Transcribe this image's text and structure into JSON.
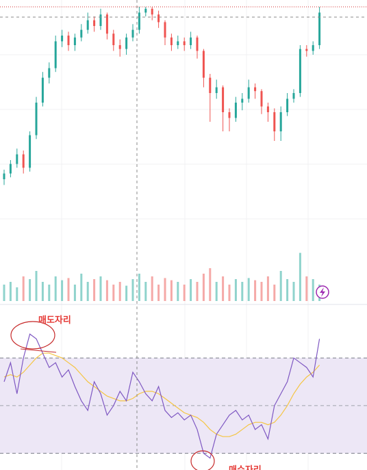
{
  "chart_data": [
    {
      "type": "candlestick",
      "up_color": "#26a69a",
      "down_color": "#ef5350",
      "ylim": [
        0,
        100
      ],
      "open": [
        10,
        13,
        18,
        23,
        16,
        33,
        50,
        63,
        68,
        82,
        85,
        80,
        84,
        88,
        93,
        90,
        96,
        86,
        80,
        78,
        84,
        88,
        97,
        99,
        96,
        92,
        84,
        80,
        82,
        80,
        84,
        77,
        63,
        55,
        58,
        45,
        42,
        50,
        52,
        58,
        56,
        48,
        45,
        35,
        45,
        52,
        55,
        78,
        77,
        80
      ],
      "high": [
        15,
        20,
        26,
        25,
        35,
        53,
        66,
        71,
        85,
        88,
        87,
        86,
        91,
        97,
        95,
        99,
        97,
        88,
        83,
        86,
        91,
        100,
        100,
        100,
        98,
        93,
        86,
        85,
        84,
        87,
        85,
        78,
        65,
        62,
        59,
        47,
        53,
        55,
        62,
        60,
        57,
        50,
        47,
        48,
        55,
        57,
        80,
        80,
        82,
        100
      ],
      "low": [
        7,
        11,
        16,
        13,
        14,
        31,
        48,
        60,
        66,
        79,
        77,
        77,
        82,
        86,
        87,
        88,
        83,
        77,
        74,
        75,
        82,
        86,
        95,
        93,
        89,
        80,
        77,
        78,
        77,
        78,
        73,
        58,
        40,
        52,
        35,
        35,
        40,
        46,
        50,
        52,
        44,
        40,
        30,
        30,
        43,
        50,
        53,
        74,
        75,
        78
      ],
      "close": [
        13,
        18,
        23,
        16,
        33,
        50,
        63,
        68,
        82,
        85,
        80,
        84,
        88,
        93,
        90,
        96,
        86,
        80,
        78,
        84,
        88,
        97,
        99,
        96,
        92,
        84,
        80,
        82,
        80,
        84,
        77,
        63,
        55,
        58,
        45,
        42,
        50,
        52,
        58,
        56,
        48,
        45,
        35,
        45,
        52,
        55,
        78,
        77,
        80,
        97
      ]
    },
    {
      "type": "bar",
      "ylim": [
        0,
        100
      ],
      "up_color": "#8fd3cc",
      "down_color": "#f5a9a7",
      "values": [
        30,
        35,
        25,
        45,
        40,
        55,
        35,
        30,
        45,
        38,
        42,
        30,
        50,
        35,
        40,
        45,
        38,
        30,
        35,
        28,
        40,
        50,
        35,
        45,
        30,
        42,
        38,
        35,
        30,
        40,
        35,
        50,
        60,
        35,
        45,
        30,
        40,
        35,
        42,
        38,
        35,
        45,
        30,
        55,
        40,
        35,
        88,
        45,
        40,
        30
      ]
    },
    {
      "type": "line",
      "ylim": [
        23,
        91
      ],
      "band": [
        30,
        70
      ],
      "midline": 50,
      "band_color": "#ede7f6",
      "series": [
        {
          "color": "#7e57c2",
          "values": [
            60,
            68,
            55,
            70,
            80,
            78,
            72,
            66,
            68,
            62,
            65,
            58,
            52,
            48,
            60,
            55,
            46,
            50,
            56,
            52,
            64,
            60,
            55,
            52,
            58,
            48,
            45,
            47,
            44,
            46,
            40,
            30,
            28,
            38,
            42,
            46,
            48,
            44,
            46,
            40,
            42,
            36,
            50,
            55,
            60,
            70,
            68,
            66,
            62,
            78
          ]
        },
        {
          "color": "#f5c542",
          "values": [
            62,
            63,
            62,
            64,
            67,
            70,
            72,
            72,
            71,
            70,
            68,
            66,
            63,
            60,
            58,
            56,
            54,
            53,
            52,
            52,
            53,
            55,
            56,
            56,
            55,
            53,
            51,
            49,
            47,
            46,
            45,
            43,
            40,
            38,
            37,
            37,
            38,
            40,
            42,
            43,
            43,
            42,
            43,
            46,
            50,
            55,
            59,
            62,
            64,
            67
          ]
        }
      ],
      "annotations": [
        "매도자리",
        "매수자리"
      ]
    }
  ]
}
